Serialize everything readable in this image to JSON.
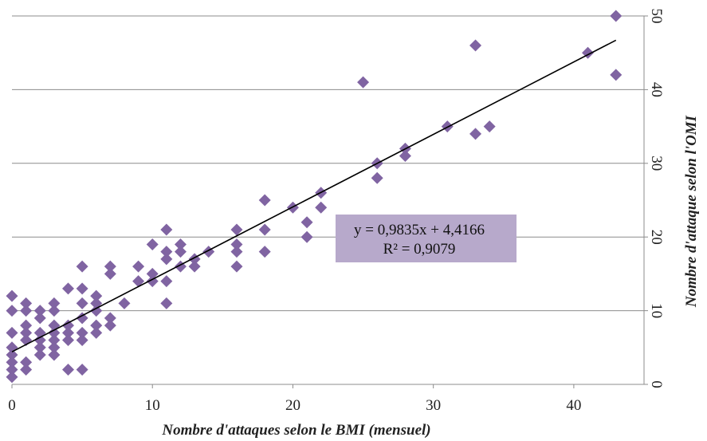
{
  "chart_data": {
    "type": "scatter",
    "xlabel": "Nombre d'attaques selon le BMI (mensuel)",
    "ylabel": "Nombre d'attaque selon l'OMI",
    "xlim": [
      0,
      45
    ],
    "ylim": [
      0,
      50
    ],
    "x_ticks": [
      "0",
      "10",
      "20",
      "30",
      "40"
    ],
    "y_ticks": [
      "0",
      "10",
      "20",
      "30",
      "40",
      "50"
    ],
    "grid": "horizontal",
    "marker_color": "#8064A2",
    "trendline": {
      "slope": 0.9835,
      "intercept": 4.4166,
      "x_range": [
        0,
        43
      ],
      "equation": "y = 0,9835x + 4,4166",
      "r_squared": "R² = 0,9079",
      "box_color": "#B7A9CB"
    },
    "points": [
      [
        0,
        1
      ],
      [
        0,
        2
      ],
      [
        0,
        3
      ],
      [
        0,
        4
      ],
      [
        0,
        5
      ],
      [
        0,
        7
      ],
      [
        0,
        10
      ],
      [
        0,
        12
      ],
      [
        1,
        2
      ],
      [
        1,
        3
      ],
      [
        1,
        6
      ],
      [
        1,
        7
      ],
      [
        1,
        8
      ],
      [
        1,
        10
      ],
      [
        1,
        11
      ],
      [
        2,
        4
      ],
      [
        2,
        5
      ],
      [
        2,
        6
      ],
      [
        2,
        7
      ],
      [
        2,
        9
      ],
      [
        2,
        10
      ],
      [
        3,
        4
      ],
      [
        3,
        5
      ],
      [
        3,
        6
      ],
      [
        3,
        7
      ],
      [
        3,
        8
      ],
      [
        3,
        10
      ],
      [
        3,
        11
      ],
      [
        4,
        2
      ],
      [
        4,
        6
      ],
      [
        4,
        7
      ],
      [
        4,
        8
      ],
      [
        4,
        13
      ],
      [
        5,
        2
      ],
      [
        5,
        6
      ],
      [
        5,
        7
      ],
      [
        5,
        9
      ],
      [
        5,
        11
      ],
      [
        5,
        13
      ],
      [
        5,
        16
      ],
      [
        6,
        7
      ],
      [
        6,
        8
      ],
      [
        6,
        10
      ],
      [
        6,
        11
      ],
      [
        6,
        12
      ],
      [
        7,
        8
      ],
      [
        7,
        9
      ],
      [
        7,
        15
      ],
      [
        7,
        16
      ],
      [
        8,
        11
      ],
      [
        9,
        14
      ],
      [
        9,
        16
      ],
      [
        10,
        14
      ],
      [
        10,
        15
      ],
      [
        10,
        19
      ],
      [
        11,
        11
      ],
      [
        11,
        14
      ],
      [
        11,
        17
      ],
      [
        11,
        18
      ],
      [
        11,
        21
      ],
      [
        12,
        16
      ],
      [
        12,
        18
      ],
      [
        12,
        19
      ],
      [
        13,
        16
      ],
      [
        13,
        17
      ],
      [
        14,
        18
      ],
      [
        16,
        16
      ],
      [
        16,
        18
      ],
      [
        16,
        19
      ],
      [
        16,
        21
      ],
      [
        18,
        18
      ],
      [
        18,
        21
      ],
      [
        18,
        25
      ],
      [
        20,
        24
      ],
      [
        21,
        20
      ],
      [
        21,
        22
      ],
      [
        22,
        24
      ],
      [
        22,
        26
      ],
      [
        25,
        41
      ],
      [
        26,
        28
      ],
      [
        26,
        30
      ],
      [
        28,
        31
      ],
      [
        28,
        32
      ],
      [
        31,
        35
      ],
      [
        33,
        34
      ],
      [
        33,
        46
      ],
      [
        34,
        35
      ],
      [
        41,
        45
      ],
      [
        43,
        42
      ],
      [
        43,
        50
      ]
    ]
  }
}
